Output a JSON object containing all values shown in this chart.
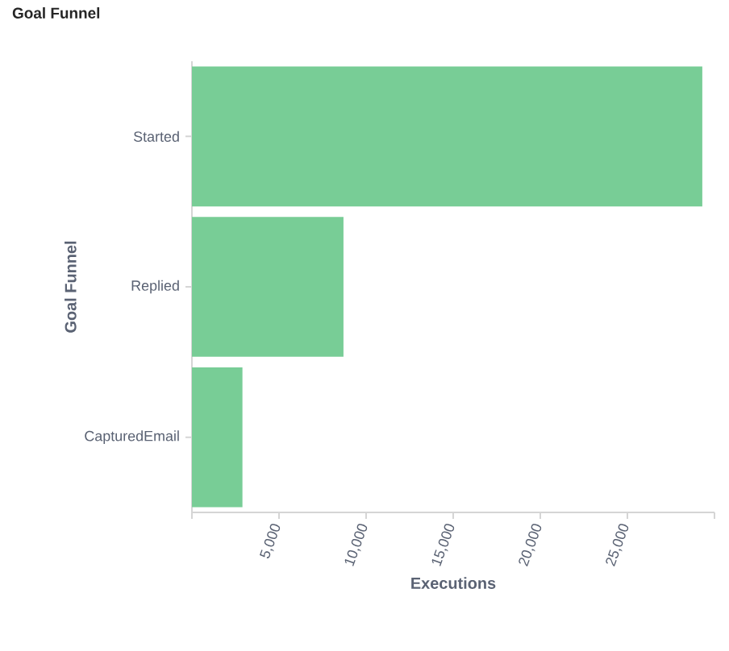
{
  "chart_data": {
    "type": "bar",
    "orientation": "horizontal",
    "title": "Goal Funnel",
    "xlabel": "Executions",
    "ylabel": "Goal Funnel",
    "categories": [
      "Started",
      "Replied",
      "CapturedEmail"
    ],
    "values": [
      29300,
      8700,
      2900
    ],
    "color": "#78cd96",
    "xlim": [
      0,
      30000
    ],
    "xticks": [
      {
        "value": 0,
        "label": null
      },
      {
        "value": 5000,
        "label": "5,000"
      },
      {
        "value": 10000,
        "label": "10,000"
      },
      {
        "value": 15000,
        "label": "15,000"
      },
      {
        "value": 20000,
        "label": "20,000"
      },
      {
        "value": 25000,
        "label": "25,000"
      },
      {
        "value": 30000,
        "label": null
      }
    ]
  }
}
